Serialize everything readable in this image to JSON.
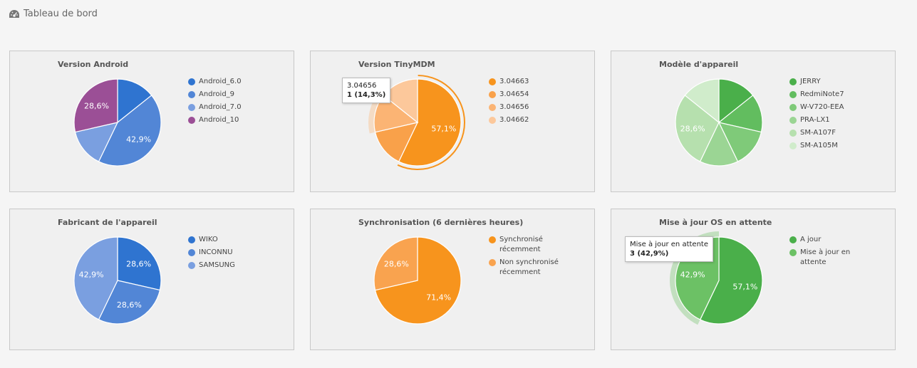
{
  "header": {
    "title": "Tableau de bord",
    "icon": "dashboard-icon"
  },
  "charts": [
    {
      "id": "android-version",
      "title": "Version Android",
      "chart_data": {
        "type": "pie",
        "title": "Version Android",
        "labels": [
          "Android_6.0",
          "Android_9",
          "Android_7.0",
          "Android_10"
        ],
        "values": [
          14.3,
          42.9,
          14.3,
          28.6
        ],
        "colors": [
          "#2f74d0",
          "#5286d6",
          "#7a9fe0",
          "#9b4f96"
        ],
        "data_labels": [
          "",
          "42,9%",
          "",
          "28,6%"
        ]
      }
    },
    {
      "id": "tinymdm-version",
      "title": "Version TinyMDM",
      "chart_data": {
        "type": "pie",
        "title": "Version TinyMDM",
        "labels": [
          "3.04663",
          "3.04654",
          "3.04656",
          "3.04662"
        ],
        "values": [
          57.1,
          14.3,
          14.3,
          14.3
        ],
        "colors": [
          "#f7941d",
          "#f9a14a",
          "#fbb474",
          "#fcc89b"
        ],
        "data_labels": [
          "57,1%",
          "",
          "",
          ""
        ],
        "highlight_index": 2,
        "selected_index": 0
      },
      "tooltip": {
        "name": "3.04656",
        "value": "1 (14,3%)"
      }
    },
    {
      "id": "device-model",
      "title": "Modèle d'appareil",
      "chart_data": {
        "type": "pie",
        "title": "Modèle d'appareil",
        "labels": [
          "JERRY",
          "RedmiNote7",
          "W-V720-EEA",
          "PRA-LX1",
          "SM-A107F",
          "SM-A105M"
        ],
        "values": [
          14.3,
          14.3,
          14.3,
          14.3,
          28.6,
          14.3
        ],
        "colors": [
          "#4aaf4a",
          "#62bd5f",
          "#7fca79",
          "#9bd594",
          "#b6e0ae",
          "#d0eccb"
        ],
        "data_labels": [
          "",
          "",
          "",
          "",
          "28,6%",
          ""
        ]
      }
    },
    {
      "id": "manufacturer",
      "title": "Fabricant de l'appareil",
      "chart_data": {
        "type": "pie",
        "title": "Fabricant de l'appareil",
        "labels": [
          "WIKO",
          "INCONNU",
          "SAMSUNG"
        ],
        "values": [
          28.6,
          28.6,
          42.9
        ],
        "colors": [
          "#2f74d0",
          "#5286d6",
          "#7a9fe0"
        ],
        "data_labels": [
          "28,6%",
          "28,6%",
          "42,9%"
        ]
      }
    },
    {
      "id": "sync",
      "title": "Synchronisation (6 dernières heures)",
      "chart_data": {
        "type": "pie",
        "title": "Synchronisation (6 dernières heures)",
        "labels": [
          "Synchronisé récemment",
          "Non synchronisé récemment"
        ],
        "values": [
          71.4,
          28.6
        ],
        "colors": [
          "#f7941d",
          "#f9a34f"
        ],
        "data_labels": [
          "71,4%",
          "28,6%"
        ]
      }
    },
    {
      "id": "os-update",
      "title": "Mise à jour OS en attente",
      "chart_data": {
        "type": "pie",
        "title": "Mise à jour OS en attente",
        "labels": [
          "A jour",
          "Mise à jour en attente"
        ],
        "values": [
          57.1,
          42.9
        ],
        "colors": [
          "#4aaf4a",
          "#6cc165"
        ],
        "data_labels": [
          "57,1%",
          "42,9%"
        ],
        "highlight_index": 1
      },
      "tooltip": {
        "name": "Mise à jour en attente",
        "value": "3 (42,9%)"
      }
    }
  ]
}
